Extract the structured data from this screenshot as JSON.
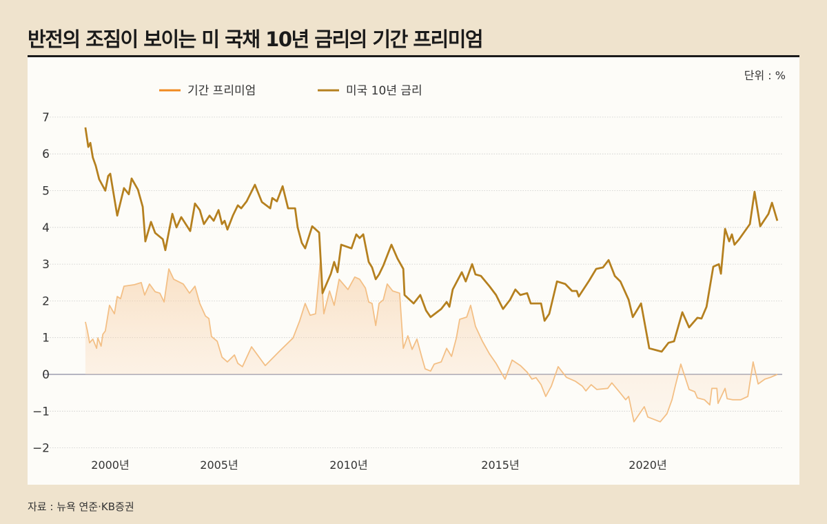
{
  "title": "반전의 조짐이 보이는 미 국채 10년 금리의 기간 프리미엄",
  "source": "자료 : 뉴욕 연준·KB증권",
  "chart_data": {
    "type": "line",
    "unit_label": "단위 : %",
    "ylim": [
      -2,
      7
    ],
    "yticks": [
      7,
      6,
      5,
      4,
      3,
      2,
      1,
      0,
      -1,
      -2
    ],
    "ytick_labels": [
      "7",
      "6",
      "5",
      "4",
      "3",
      "2",
      "1",
      "0",
      "−1",
      "−2"
    ],
    "xticks": [
      2000,
      2005,
      2010,
      2015,
      2020
    ],
    "xtick_labels": [
      "2000년",
      "2005년",
      "2010년",
      "2015년",
      "2020년"
    ],
    "grid": true,
    "legend_position": "top-left",
    "colors": {
      "term_premium_legend": "#f08a20",
      "term_premium_line": "#f3bf85",
      "yield": "#b5801f",
      "background": "#efe3cd"
    },
    "series": [
      {
        "name": "기간 프리미엄",
        "area_fill": true,
        "x": [
          1998.1,
          1998.26,
          1998.42,
          1998.67,
          1998.96,
          1999.05,
          1999.3,
          1999.43,
          1999.62,
          1999.94,
          2000.19,
          2000.32,
          2000.47,
          2000.63,
          2001.11,
          2001.42,
          2001.58,
          2001.8,
          2002.06,
          2002.28,
          2002.47,
          2002.69,
          2002.91,
          2003.35,
          2003.64,
          2003.89,
          2004.11,
          2004.37,
          2004.53,
          2004.65,
          2004.91,
          2005.11,
          2005.32,
          2005.59,
          2005.72,
          2005.9,
          2006.25,
          2006.78,
          2007.31,
          2007.85,
          2008.11,
          2008.32,
          2008.51,
          2008.72,
          2008.91,
          2009.04,
          2009.26,
          2009.44,
          2009.63,
          2009.97,
          2010.2,
          2010.36,
          2010.55,
          2010.66,
          2010.77,
          2010.89,
          2011.0,
          2011.14,
          2011.27,
          2011.45,
          2011.68,
          2011.8,
          2011.95,
          2012.09,
          2012.25,
          2012.41,
          2012.52,
          2012.7,
          2012.82,
          2013.05,
          2013.23,
          2013.39,
          2013.55,
          2013.66,
          2013.89,
          2014.02,
          2014.18,
          2014.41,
          2014.64,
          2014.86,
          2015.16,
          2015.4,
          2015.68,
          2015.91,
          2016.07,
          2016.21,
          2016.38,
          2016.54,
          2016.73,
          2016.96,
          2017.24,
          2017.55,
          2017.78,
          2017.9,
          2018.08,
          2018.27,
          2018.64,
          2018.78,
          2019.07,
          2019.25,
          2019.35,
          2019.53,
          2019.88,
          2020.0,
          2020.42,
          2020.65,
          2020.82,
          2020.93,
          2021.12,
          2021.4,
          2021.59,
          2021.68,
          2021.92,
          2022.1,
          2022.17,
          2022.34,
          2022.38,
          2022.62,
          2022.69,
          2022.87,
          2023.15,
          2023.39,
          2023.57,
          2023.74,
          2023.97,
          2024.16,
          2024.39
        ],
        "y": [
          1.43,
          1.18,
          0.86,
          0.96,
          0.71,
          0.99,
          0.77,
          1.09,
          1.18,
          1.88,
          1.65,
          2.12,
          2.06,
          2.4,
          2.44,
          2.5,
          2.16,
          2.46,
          2.25,
          2.21,
          1.97,
          2.87,
          2.59,
          2.46,
          2.21,
          2.4,
          1.93,
          1.59,
          1.52,
          1.03,
          0.9,
          0.47,
          0.34,
          0.53,
          0.3,
          0.21,
          0.75,
          0.24,
          0.62,
          0.99,
          1.46,
          1.93,
          1.61,
          1.65,
          3.1,
          1.65,
          2.27,
          1.88,
          2.59,
          2.31,
          2.65,
          2.59,
          2.35,
          1.97,
          1.93,
          1.33,
          1.93,
          2.03,
          2.46,
          2.27,
          2.21,
          0.71,
          1.05,
          0.68,
          0.96,
          0.47,
          0.15,
          0.09,
          0.28,
          0.34,
          0.71,
          0.49,
          0.99,
          1.5,
          1.56,
          1.88,
          1.31,
          0.9,
          0.56,
          0.3,
          -0.13,
          0.39,
          0.24,
          0.06,
          -0.13,
          -0.09,
          -0.28,
          -0.6,
          -0.32,
          0.21,
          -0.08,
          -0.19,
          -0.32,
          -0.45,
          -0.28,
          -0.41,
          -0.38,
          -0.23,
          -0.51,
          -0.69,
          -0.6,
          -1.29,
          -0.88,
          -1.16,
          -1.29,
          -1.07,
          -0.69,
          -0.32,
          0.28,
          -0.41,
          -0.47,
          -0.64,
          -0.69,
          -0.83,
          -0.38,
          -0.38,
          -0.79,
          -0.38,
          -0.66,
          -0.69,
          -0.69,
          -0.6,
          0.34,
          -0.26,
          -0.13,
          -0.08,
          0.0
        ]
      },
      {
        "name": "미국 10년 금리",
        "x": [
          1998.1,
          1998.32,
          1998.48,
          1998.67,
          1998.89,
          1999.15,
          1999.62,
          1999.84,
          2000.0,
          2000.32,
          2000.63,
          2000.85,
          2000.98,
          2001.27,
          2001.49,
          2001.61,
          2001.87,
          2002.06,
          2002.41,
          2002.53,
          2002.85,
          2003.04,
          2003.26,
          2003.67,
          2003.89,
          2004.11,
          2004.3,
          2004.56,
          2004.75,
          2004.97,
          2005.11,
          2005.21,
          2005.32,
          2005.53,
          2005.72,
          2005.85,
          2006.06,
          2006.38,
          2006.65,
          2006.97,
          2007.05,
          2007.23,
          2007.45,
          2007.66,
          2007.93,
          2008.03,
          2008.19,
          2008.32,
          2008.59,
          2008.86,
          2008.99,
          2009.31,
          2009.44,
          2009.57,
          2009.71,
          2010.09,
          2010.25,
          2010.36,
          2010.48,
          2010.66,
          2010.77,
          2010.89,
          2011.0,
          2011.14,
          2011.41,
          2011.61,
          2011.8,
          2011.84,
          2012.14,
          2012.36,
          2012.55,
          2012.7,
          2013.05,
          2013.23,
          2013.32,
          2013.43,
          2013.73,
          2013.86,
          2014.07,
          2014.18,
          2014.36,
          2014.64,
          2014.86,
          2015.09,
          2015.33,
          2015.51,
          2015.68,
          2015.91,
          2016.03,
          2016.38,
          2016.5,
          2016.66,
          2016.92,
          2017.2,
          2017.43,
          2017.59,
          2017.66,
          2018.01,
          2018.25,
          2018.48,
          2018.67,
          2018.88,
          2019.07,
          2019.35,
          2019.49,
          2019.77,
          2020.05,
          2020.47,
          2020.7,
          2020.89,
          2021.17,
          2021.4,
          2021.68,
          2021.82,
          2021.99,
          2022.22,
          2022.41,
          2022.48,
          2022.62,
          2022.76,
          2022.85,
          2022.94,
          2023.08,
          2023.46,
          2023.62,
          2023.81,
          2024.09,
          2024.21,
          2024.39
        ],
        "y": [
          6.72,
          6.19,
          6.3,
          5.9,
          5.68,
          5.31,
          5.0,
          5.4,
          5.46,
          4.32,
          5.07,
          4.9,
          5.33,
          5.03,
          4.56,
          3.62,
          4.15,
          3.85,
          3.68,
          3.38,
          4.37,
          4.0,
          4.28,
          3.9,
          4.65,
          4.47,
          4.09,
          4.32,
          4.18,
          4.47,
          4.09,
          4.18,
          3.94,
          4.32,
          4.6,
          4.52,
          4.71,
          5.16,
          4.69,
          4.52,
          4.8,
          4.71,
          5.12,
          4.52,
          4.52,
          4.0,
          3.58,
          3.43,
          4.03,
          3.86,
          2.21,
          2.74,
          3.06,
          2.78,
          3.53,
          3.43,
          3.81,
          3.71,
          3.81,
          3.06,
          2.91,
          2.59,
          2.72,
          2.96,
          3.53,
          3.15,
          2.87,
          2.16,
          1.93,
          2.16,
          1.74,
          1.56,
          1.78,
          1.97,
          1.84,
          2.31,
          2.78,
          2.53,
          3.0,
          2.72,
          2.68,
          2.4,
          2.16,
          1.78,
          2.03,
          2.31,
          2.16,
          2.21,
          1.93,
          1.93,
          1.46,
          1.65,
          2.53,
          2.46,
          2.27,
          2.27,
          2.12,
          2.55,
          2.87,
          2.91,
          3.11,
          2.68,
          2.53,
          2.03,
          1.56,
          1.93,
          0.71,
          0.62,
          0.86,
          0.9,
          1.69,
          1.28,
          1.54,
          1.52,
          1.84,
          2.93,
          3.0,
          2.74,
          3.96,
          3.62,
          3.81,
          3.53,
          3.66,
          4.09,
          4.97,
          4.03,
          4.37,
          4.67,
          4.18
        ]
      }
    ]
  }
}
